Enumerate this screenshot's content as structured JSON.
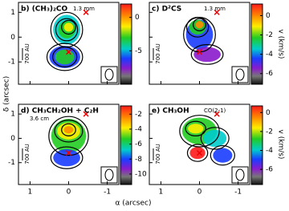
{
  "figure": {
    "xlabel": "α (arcsec)",
    "ylabel": "δ (arcsec)",
    "cbar_label": "v (km/s)",
    "xlim": [
      1.3,
      -1.3
    ],
    "xticks": [
      1,
      0,
      -1
    ],
    "ylim": [
      -1.9,
      1.4
    ],
    "yticks": [
      1,
      0,
      -1
    ],
    "panels": [
      {
        "label": "b) (CH₃)₂CO",
        "note": "1.3 mm",
        "scale": "700 AU",
        "clim": [
          -10,
          2
        ],
        "cticks": [
          0,
          -5
        ]
      },
      {
        "label": "c) D²CS",
        "note": "1.3 mm",
        "scale": "700 AU",
        "clim": [
          -7.1,
          1.2
        ],
        "cticks": [
          0,
          -2,
          -4,
          -6
        ]
      },
      {
        "label": "d) CH₃CH₂OH + C₂H",
        "note": "3.6 cm",
        "scale": "700 AU",
        "clim": [
          -11.4,
          -0.9
        ],
        "cticks": [
          -2,
          -4,
          -6,
          -8,
          -10
        ]
      },
      {
        "label": "e) CH₃OH",
        "note": "CO(2-1)",
        "scale": "700 AU",
        "clim": [
          -7.6,
          0.7
        ],
        "cticks": [
          0,
          -2,
          -4,
          -6
        ]
      }
    ]
  }
}
